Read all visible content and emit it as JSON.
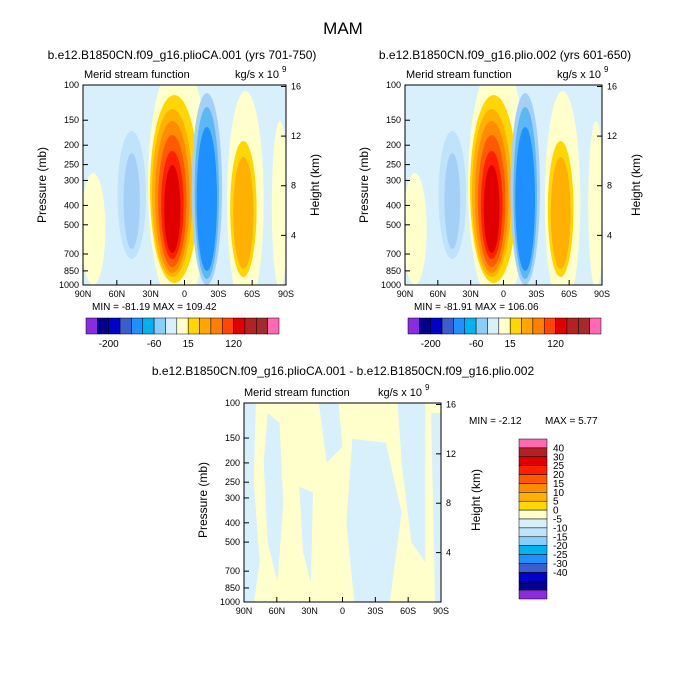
{
  "page_title": "MAM",
  "chart_data": [
    {
      "type": "contour",
      "title": "b.e12.B1850CN.f09_g16.plioCA.001 (yrs 701-750)",
      "left_string": "Merid stream function",
      "right_string": "kg/s x 10",
      "right_string_exp": "9",
      "xlabel": "",
      "ylabel": "Pressure (mb)",
      "y2label": "Height (km)",
      "x_ticks": [
        "90N",
        "60N",
        "30N",
        "0",
        "30S",
        "60S",
        "90S"
      ],
      "y_ticks": [
        "100",
        "150",
        "200",
        "250",
        "300",
        "400",
        "500",
        "700",
        "850",
        "1000"
      ],
      "height_ticks": [
        "4",
        "8",
        "12",
        "16"
      ],
      "min_max": "MIN = -81.19   MAX = 109.42",
      "colorbar_labels": [
        "-200",
        "-60",
        "15",
        "120"
      ]
    },
    {
      "type": "contour",
      "title": "b.e12.B1850CN.f09_g16.plio.002 (yrs 601-650)",
      "left_string": "Merid stream function",
      "right_string": "kg/s x 10",
      "right_string_exp": "9",
      "xlabel": "",
      "ylabel": "Pressure (mb)",
      "y2label": "Height (km)",
      "x_ticks": [
        "90N",
        "60N",
        "30N",
        "0",
        "30S",
        "60S",
        "90S"
      ],
      "y_ticks": [
        "100",
        "150",
        "200",
        "250",
        "300",
        "400",
        "500",
        "700",
        "850",
        "1000"
      ],
      "height_ticks": [
        "4",
        "8",
        "12",
        "16"
      ],
      "min_max": "MIN = -81.91   MAX = 106.06",
      "colorbar_labels": [
        "-200",
        "-60",
        "15",
        "120"
      ]
    },
    {
      "type": "contour",
      "title": "b.e12.B1850CN.f09_g16.plioCA.001 - b.e12.B1850CN.f09_g16.plio.002",
      "left_string": "Merid stream function",
      "right_string": "kg/s x 10",
      "right_string_exp": "9",
      "xlabel": "",
      "ylabel": "Pressure (mb)",
      "y2label": "Height (km)",
      "x_ticks": [
        "90N",
        "60N",
        "30N",
        "0",
        "30S",
        "60S",
        "90S"
      ],
      "y_ticks": [
        "100",
        "150",
        "200",
        "250",
        "300",
        "400",
        "500",
        "700",
        "850",
        "1000"
      ],
      "height_ticks": [
        "4",
        "8",
        "12",
        "16"
      ],
      "min_max_min": "MIN =   -2.12",
      "min_max_max": "MAX =    5.77",
      "colorbar_labels": [
        "40",
        "30",
        "25",
        "20",
        "15",
        "10",
        "5",
        "0",
        "-5",
        "-10",
        "-15",
        "-20",
        "-25",
        "-30",
        "-40"
      ]
    }
  ],
  "colors": {
    "top_scale": [
      "#8a2be2",
      "#00008b",
      "#0000cd",
      "#3a5fcd",
      "#1e90ff",
      "#00b2ee",
      "#87cefa",
      "#d7f0fc",
      "#ffffcc",
      "#ffd700",
      "#ffa500",
      "#ff7f00",
      "#ff4500",
      "#e00000",
      "#b22222",
      "#a52a2a",
      "#ff69b4"
    ],
    "diff_scale": [
      "#ff69b4",
      "#b22222",
      "#e00000",
      "#ff2000",
      "#ff5a00",
      "#ff8c00",
      "#ffb000",
      "#ffd700",
      "#ffffcc",
      "#d7f0fc",
      "#bfe3fa",
      "#87cefa",
      "#00b2ee",
      "#1e90ff",
      "#3a5fcd",
      "#0000cd",
      "#00008b",
      "#8a2be2"
    ]
  }
}
